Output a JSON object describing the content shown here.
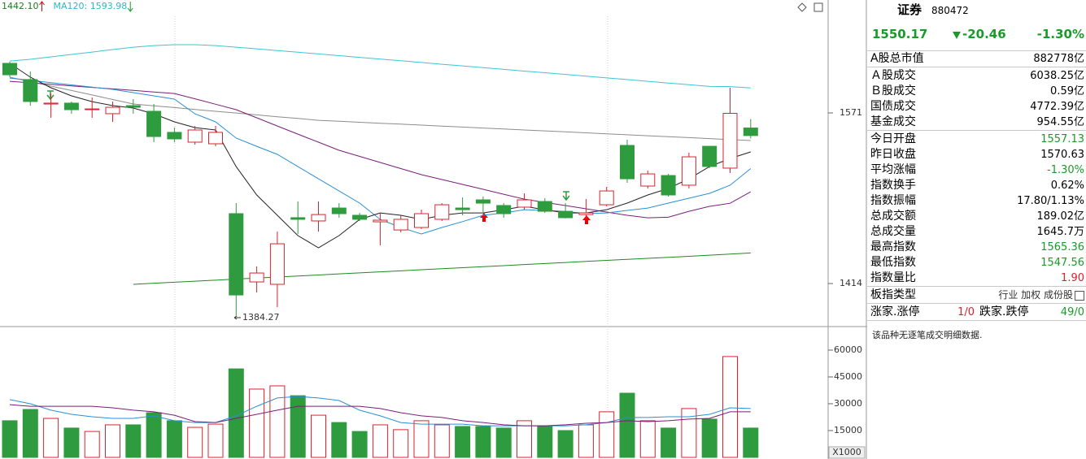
{
  "chart_data": [
    {
      "type": "candlestick",
      "legend": [
        {
          "text": "1442.10",
          "color": "#1f7a1f"
        },
        {
          "text": "MA120: 1593.98",
          "color": "#2fb8c4"
        }
      ],
      "up_color": "#d9232e",
      "down_color": "#2f9b3f",
      "ylim": [
        1375.9,
        1674.9
      ],
      "yticks": [
        1414,
        1571
      ],
      "open": [
        1616.6,
        1601.7,
        1579.2,
        1580.0,
        1574.0,
        1570.3,
        1577.7,
        1572.5,
        1553.1,
        1544.1,
        1542.6,
        1478.3,
        1415.5,
        1413.3,
        1474.6,
        1471.6,
        1483.5,
        1476.8,
        1470.8,
        1463.3,
        1465.6,
        1473.1,
        1483.5,
        1491.0,
        1485.8,
        1484.3,
        1489.5,
        1480.5,
        1477.5,
        1486.5,
        1541.1,
        1503.7,
        1513.4,
        1504.5,
        1540.3,
        1520.2,
        1557.13
      ],
      "high": [
        1618.1,
        1609.1,
        1588.9,
        1581.5,
        1585.2,
        1581.5,
        1583.7,
        1579.2,
        1557.5,
        1559.0,
        1559.0,
        1488.0,
        1429.7,
        1461.8,
        1489.5,
        1489.5,
        1488.0,
        1479.0,
        1479.0,
        1476.8,
        1482.0,
        1488.0,
        1493.2,
        1494.0,
        1488.0,
        1497.0,
        1492.5,
        1488.0,
        1491.8,
        1503.0,
        1546.3,
        1517.9,
        1514.9,
        1534.4,
        1540.3,
        1594.2,
        1565.36
      ],
      "low": [
        1603.9,
        1577.7,
        1566.5,
        1570.3,
        1566.5,
        1562.8,
        1570.3,
        1544.1,
        1544.1,
        1541.8,
        1540.3,
        1384.27,
        1405.8,
        1392.3,
        1459.6,
        1461.8,
        1474.6,
        1471.6,
        1449.1,
        1461.1,
        1464.1,
        1471.6,
        1476.8,
        1479.0,
        1474.6,
        1482.0,
        1479.0,
        1474.0,
        1473.1,
        1485.0,
        1506.7,
        1501.5,
        1494.0,
        1501.5,
        1520.2,
        1515.7,
        1547.56
      ],
      "close": [
        1606.1,
        1581.5,
        1580.0,
        1574.0,
        1574.7,
        1576.2,
        1576.2,
        1549.3,
        1547.1,
        1555.3,
        1553.1,
        1403.5,
        1423.7,
        1450.6,
        1473.1,
        1477.5,
        1478.3,
        1473.1,
        1472.3,
        1473.1,
        1478.3,
        1486.5,
        1482.0,
        1488.0,
        1478.3,
        1491.0,
        1480.5,
        1474.6,
        1479.0,
        1499.2,
        1510.4,
        1514.9,
        1495.5,
        1530.6,
        1521.7,
        1570.63,
        1550.17
      ],
      "series": [
        {
          "name": "MA120",
          "color": "#3cc6cf",
          "values": [
            1618.8,
            1620.3,
            1622.6,
            1624.8,
            1627.0,
            1629.3,
            1631.5,
            1633.0,
            1633.8,
            1633.8,
            1633.0,
            1631.5,
            1630.0,
            1628.4,
            1626.8,
            1625.3,
            1623.7,
            1622.1,
            1620.5,
            1619.0,
            1617.4,
            1615.8,
            1614.3,
            1612.7,
            1611.1,
            1609.5,
            1608.0,
            1606.4,
            1604.8,
            1603.2,
            1601.7,
            1600.1,
            1598.5,
            1597.0,
            1595.4,
            1595.2,
            1593.98
          ]
        },
        {
          "color": "#8c8c8c",
          "values": [
            1603.9,
            1599.8,
            1595.7,
            1591.6,
            1587.5,
            1583.3,
            1579.2,
            1577.5,
            1575.9,
            1574.2,
            1572.5,
            1570.9,
            1569.2,
            1567.5,
            1565.9,
            1564.2,
            1563.3,
            1562.4,
            1561.5,
            1560.7,
            1559.8,
            1558.9,
            1558.0,
            1557.1,
            1556.2,
            1555.3,
            1554.5,
            1553.6,
            1552.7,
            1551.8,
            1550.9,
            1550.0,
            1549.2,
            1548.3,
            1547.4,
            1546.5,
            1545.6
          ]
        },
        {
          "color": "#7a1e7a",
          "values": [
            1600.1,
            1598.7,
            1597.3,
            1595.9,
            1594.5,
            1593.1,
            1591.7,
            1590.3,
            1588.9,
            1584.0,
            1579.0,
            1574.0,
            1566.5,
            1559.0,
            1551.5,
            1544.1,
            1536.6,
            1531.0,
            1525.4,
            1519.8,
            1514.2,
            1509.7,
            1505.2,
            1500.7,
            1496.2,
            1491.7,
            1488.7,
            1485.8,
            1482.8,
            1479.8,
            1476.8,
            1474.5,
            1475.0,
            1480.5,
            1485.0,
            1487.9,
            1498.4
          ]
        },
        {
          "color": "#2a8fd6",
          "values": [
            1603.1,
            1601.0,
            1598.9,
            1596.8,
            1594.7,
            1592.7,
            1589.7,
            1586.7,
            1583.7,
            1570.2,
            1562.8,
            1547.8,
            1540.3,
            1532.9,
            1521.6,
            1510.4,
            1499.2,
            1488.0,
            1473.0,
            1465.6,
            1459.6,
            1465.6,
            1471.0,
            1476.8,
            1479.0,
            1482.0,
            1481.3,
            1480.5,
            1478.3,
            1479.0,
            1481.3,
            1483.5,
            1488.0,
            1492.5,
            1497.0,
            1504.5,
            1519.8
          ]
        },
        {
          "color": "#222222",
          "values": [
            1616.6,
            1603.9,
            1594.2,
            1586.7,
            1581.4,
            1577.7,
            1575.5,
            1570.2,
            1562.8,
            1557.5,
            1555.3,
            1521.6,
            1495.5,
            1476.8,
            1458.1,
            1446.9,
            1458.1,
            1473.0,
            1479.0,
            1476.8,
            1473.0,
            1476.8,
            1479.0,
            1479.0,
            1482.0,
            1485.0,
            1482.0,
            1479.0,
            1479.0,
            1482.0,
            1488.0,
            1495.5,
            1501.5,
            1510.4,
            1521.6,
            1529.1,
            1535.1
          ]
        },
        {
          "color": "#1f8a1f",
          "values": [
            null,
            null,
            null,
            null,
            null,
            null,
            1413.3,
            1414.3,
            1415.2,
            1416.2,
            1417.1,
            1418.1,
            1419.0,
            1420.0,
            1421.0,
            1421.9,
            1422.9,
            1423.8,
            1424.8,
            1425.7,
            1426.7,
            1427.7,
            1428.6,
            1429.6,
            1430.5,
            1431.5,
            1432.4,
            1433.4,
            1434.4,
            1435.3,
            1436.3,
            1437.2,
            1438.2,
            1439.1,
            1440.1,
            1441.1,
            1442.1
          ]
        }
      ]
    },
    {
      "type": "bar",
      "ylim": [
        0,
        71800
      ],
      "yticks": [
        15000,
        30000,
        45000,
        60000
      ],
      "unit_label": "X1000",
      "values": [
        20500,
        26800,
        21800,
        16400,
        14500,
        18200,
        18200,
        25000,
        20500,
        16800,
        18600,
        49500,
        38200,
        40000,
        34500,
        23600,
        19500,
        14500,
        18200,
        15500,
        20500,
        18200,
        17300,
        17300,
        16400,
        20500,
        17300,
        15000,
        18200,
        25500,
        35900,
        20500,
        16400,
        27300,
        21400,
        56400,
        16400
      ],
      "series": [
        {
          "color": "#2a8fd6",
          "values": [
            32300,
            30000,
            26400,
            24100,
            22700,
            21800,
            21800,
            23200,
            20500,
            19500,
            19500,
            23200,
            28600,
            33200,
            34100,
            33200,
            31800,
            26400,
            23200,
            19500,
            18600,
            18600,
            18600,
            17700,
            17700,
            17700,
            17700,
            17700,
            18200,
            19500,
            22300,
            22300,
            22700,
            22700,
            24100,
            27700,
            27300
          ]
        },
        {
          "color": "#7a1e7a",
          "values": [
            29500,
            28600,
            28600,
            28600,
            28600,
            27700,
            26400,
            25500,
            23600,
            20000,
            19500,
            21800,
            24100,
            26400,
            28600,
            28600,
            28600,
            28600,
            27300,
            25000,
            23200,
            22300,
            20500,
            19500,
            18200,
            17700,
            17700,
            18200,
            19100,
            19500,
            20500,
            20000,
            20500,
            21400,
            21800,
            25500,
            25500
          ]
        }
      ]
    }
  ],
  "panel": {
    "title": "证券",
    "code": "880472",
    "price": "1550.17",
    "change": "-20.46",
    "change_pct": "-1.30%",
    "quote_color": "#1a9a2a",
    "groups": [
      [
        {
          "label": "A股总市值",
          "value": "882778亿",
          "color": "#000000"
        }
      ],
      [
        {
          "label": "Ａ股成交",
          "value": "6038.25亿",
          "color": "#000000"
        },
        {
          "label": "Ｂ股成交",
          "value": "0.59亿",
          "color": "#000000"
        },
        {
          "label": "国债成交",
          "value": "4772.39亿",
          "color": "#000000"
        },
        {
          "label": "基金成交",
          "value": "954.55亿",
          "color": "#000000"
        }
      ],
      [
        {
          "label": "今日开盘",
          "value": "1557.13",
          "color": "#1a9a2a"
        },
        {
          "label": "昨日收盘",
          "value": "1570.63",
          "color": "#000000"
        },
        {
          "label": "平均涨幅",
          "value": "-1.30%",
          "color": "#1a9a2a"
        },
        {
          "label": "指数换手",
          "value": "0.62%",
          "color": "#000000"
        },
        {
          "label": "指数振幅",
          "value": "17.80/1.13%",
          "color": "#000000"
        },
        {
          "label": "总成交额",
          "value": "189.02亿",
          "color": "#000000"
        },
        {
          "label": "总成交量",
          "value": "1645.7万",
          "color": "#000000"
        },
        {
          "label": "最高指数",
          "value": "1565.36",
          "color": "#1a9a2a"
        },
        {
          "label": "最低指数",
          "value": "1547.56",
          "color": "#1a9a2a"
        },
        {
          "label": "指数量比",
          "value": "1.90",
          "color": "#d9232e"
        }
      ]
    ],
    "sector": {
      "label": "板指类型",
      "value": "行业 加权 成份股"
    },
    "limits": {
      "up_label": "涨家.涨停",
      "up_value": "1/0",
      "up_color": "#d9232e",
      "down_label": "跌家.跌停",
      "down_value": "49/0",
      "down_color": "#1a9a2a"
    },
    "note": "该品种无逐笔成交明细数据."
  }
}
